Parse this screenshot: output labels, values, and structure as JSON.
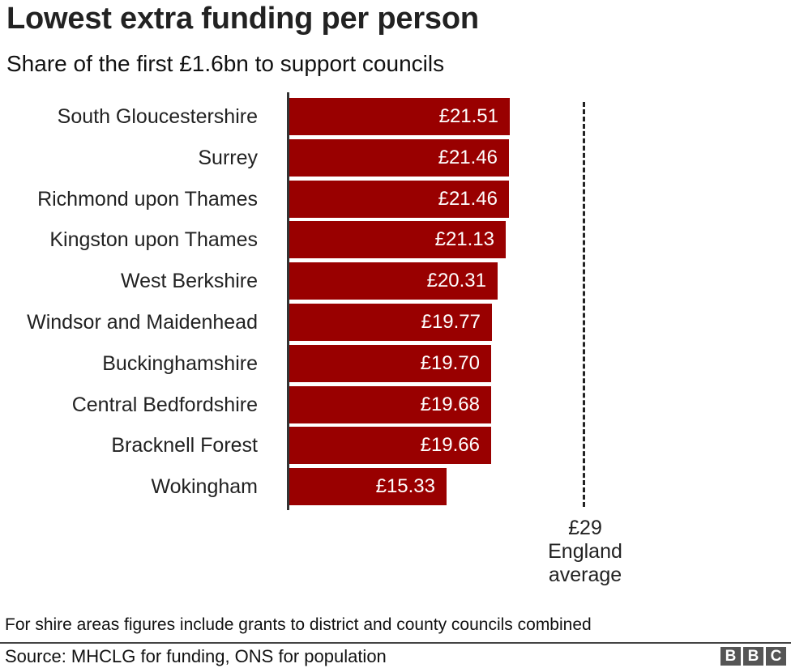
{
  "header": {
    "title": "Lowest extra funding per person",
    "subtitle": "Share of the first £1.6bn to support councils"
  },
  "reference": {
    "value_label": "£29",
    "line1": "England",
    "line2": "average",
    "value": 29
  },
  "footer": {
    "note": "For shire areas figures include grants to district and county councils combined",
    "source": "Source: MHCLG for funding, ONS for population",
    "logo": [
      "B",
      "B",
      "C"
    ]
  },
  "colors": {
    "bar": "#990000",
    "text": "#222222"
  },
  "rows": [
    {
      "name": "South Gloucestershire",
      "label": "£21.51"
    },
    {
      "name": "Surrey",
      "label": "£21.46"
    },
    {
      "name": "Richmond upon Thames",
      "label": "£21.46"
    },
    {
      "name": "Kingston upon Thames",
      "label": "£21.13"
    },
    {
      "name": "West Berkshire",
      "label": "£20.31"
    },
    {
      "name": "Windsor and Maidenhead",
      "label": "£19.77"
    },
    {
      "name": "Buckinghamshire",
      "label": "£19.70"
    },
    {
      "name": "Central Bedfordshire",
      "label": "£19.68"
    },
    {
      "name": "Bracknell Forest",
      "label": "£19.66"
    },
    {
      "name": "Wokingham",
      "label": "£15.33"
    }
  ],
  "chart_data": {
    "type": "bar",
    "orientation": "horizontal",
    "title": "Lowest extra funding per person",
    "subtitle": "Share of the first £1.6bn to support councils",
    "categories": [
      "South Gloucestershire",
      "Surrey",
      "Richmond upon Thames",
      "Kingston upon Thames",
      "West Berkshire",
      "Windsor and Maidenhead",
      "Buckinghamshire",
      "Central Bedfordshire",
      "Bracknell Forest",
      "Wokingham"
    ],
    "values": [
      21.51,
      21.46,
      21.46,
      21.13,
      20.31,
      19.77,
      19.7,
      19.68,
      19.66,
      15.33
    ],
    "unit": "£ per person",
    "xlabel": "",
    "ylabel": "",
    "xlim": [
      0,
      29
    ],
    "grid": false,
    "data_labels": true,
    "reference_lines": [
      {
        "value": 29,
        "label": "£29 England average",
        "style": "dashed"
      }
    ],
    "annotations": [
      "For shire areas figures include grants to district and county councils combined"
    ],
    "source": "Source: MHCLG for funding, ONS for population"
  }
}
